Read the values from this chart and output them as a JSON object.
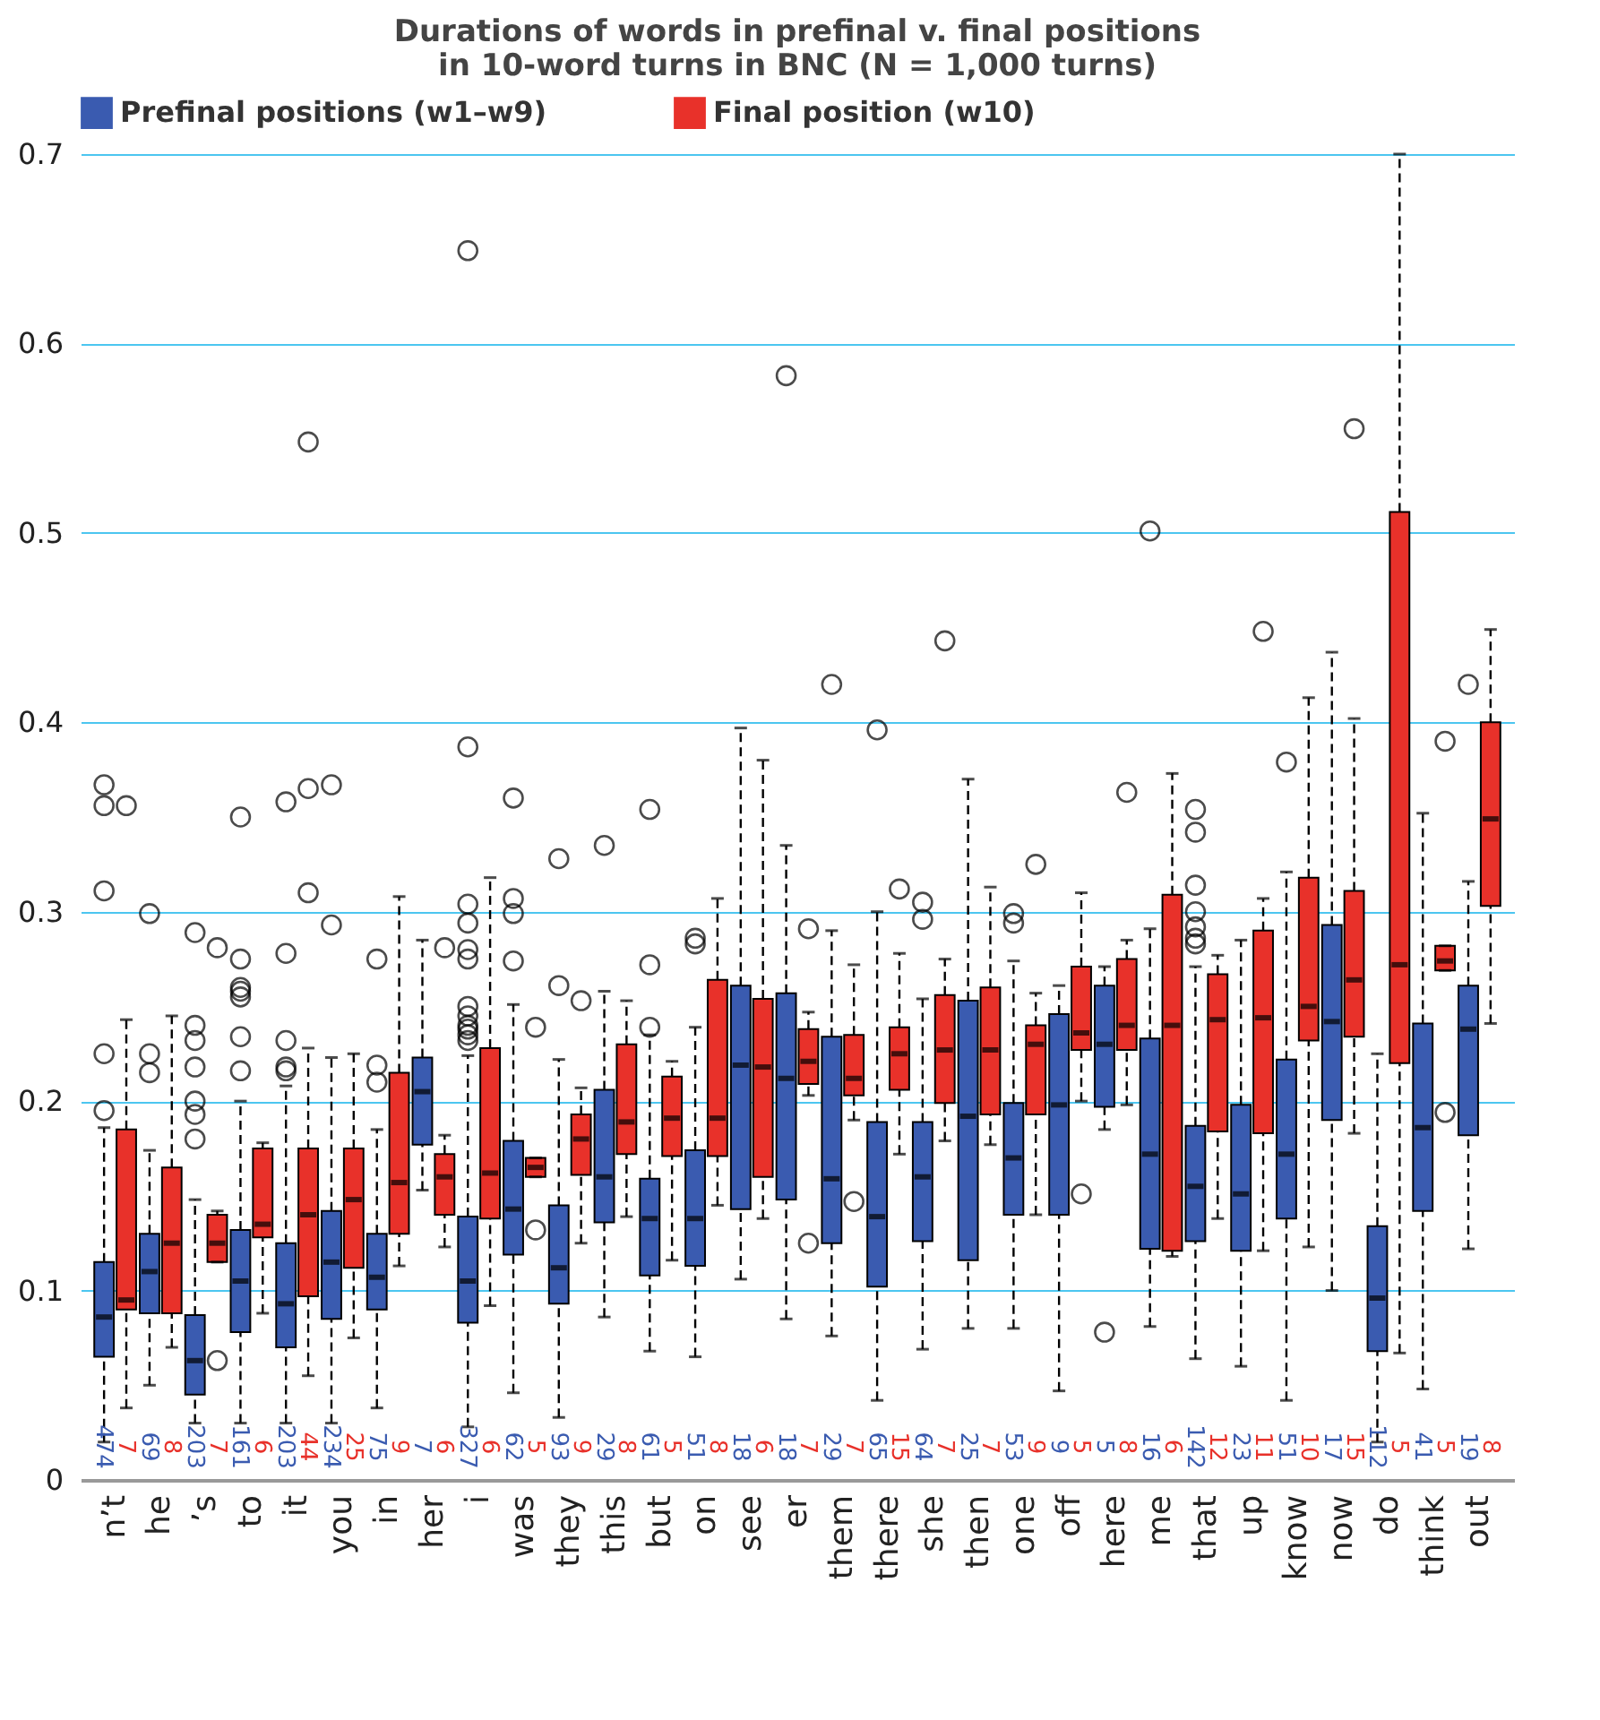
{
  "chart_data": {
    "type": "box",
    "title": "Durations of words in prefinal v. final positions\nin 10-word turns in BNC (N = 1,000 turns)",
    "categories": [
      "n’t",
      "he",
      "’s",
      "to",
      "it",
      "you",
      "in",
      "her",
      "i",
      "was",
      "they",
      "this",
      "but",
      "on",
      "see",
      "er",
      "them",
      "there",
      "she",
      "then",
      "one",
      "off",
      "here",
      "me",
      "that",
      "up",
      "know",
      "now",
      "do",
      "think",
      "out"
    ],
    "ylim": [
      0,
      0.7
    ],
    "yticks": [
      0,
      0.1,
      0.2,
      0.3,
      0.4,
      0.5,
      0.6,
      0.7
    ],
    "grid": "y",
    "legend": "top",
    "series": [
      {
        "name": "Prefinal positions (w1–w9)",
        "color": "#3a5bb0",
        "value_labels": [
          "474",
          "69",
          "203",
          "161",
          "203",
          "234",
          "75",
          "7",
          "327",
          "62",
          "93",
          "29",
          "61",
          "51",
          "18",
          "18",
          "29",
          "65",
          "64",
          "25",
          "53",
          "9",
          "5",
          "16",
          "142",
          "23",
          "51",
          "17",
          "112",
          "41",
          "19"
        ],
        "boxes": [
          {
            "low": 0.02,
            "q1": 0.065,
            "median": 0.086,
            "q3": 0.115,
            "high": 0.186,
            "outliers": [
              0.195,
              0.225,
              0.311,
              0.356,
              0.367
            ]
          },
          {
            "low": 0.05,
            "q1": 0.088,
            "median": 0.11,
            "q3": 0.13,
            "high": 0.174,
            "outliers": [
              0.215,
              0.225,
              0.299
            ]
          },
          {
            "low": 0.03,
            "q1": 0.045,
            "median": 0.063,
            "q3": 0.087,
            "high": 0.148,
            "outliers": [
              0.18,
              0.193,
              0.2,
              0.218,
              0.232,
              0.24,
              0.289
            ]
          },
          {
            "low": 0.03,
            "q1": 0.078,
            "median": 0.105,
            "q3": 0.132,
            "high": 0.2,
            "outliers": [
              0.216,
              0.234,
              0.255,
              0.258,
              0.26,
              0.275,
              0.35
            ]
          },
          {
            "low": 0.03,
            "q1": 0.07,
            "median": 0.093,
            "q3": 0.125,
            "high": 0.208,
            "outliers": [
              0.216,
              0.218,
              0.232,
              0.278,
              0.358
            ]
          },
          {
            "low": 0.03,
            "q1": 0.085,
            "median": 0.115,
            "q3": 0.142,
            "high": 0.223,
            "outliers": [
              0.293,
              0.367
            ]
          },
          {
            "low": 0.038,
            "q1": 0.09,
            "median": 0.107,
            "q3": 0.13,
            "high": 0.185,
            "outliers": [
              0.21,
              0.219,
              0.275
            ]
          },
          {
            "low": 0.153,
            "q1": 0.177,
            "median": 0.205,
            "q3": 0.223,
            "high": 0.285
          },
          {
            "low": 0.028,
            "q1": 0.083,
            "median": 0.105,
            "q3": 0.139,
            "high": 0.224,
            "outliers": [
              0.232,
              0.235,
              0.238,
              0.24,
              0.245,
              0.25,
              0.275,
              0.28,
              0.294,
              0.304,
              0.387,
              0.649
            ]
          },
          {
            "low": 0.046,
            "q1": 0.119,
            "median": 0.143,
            "q3": 0.179,
            "high": 0.251,
            "outliers": [
              0.274,
              0.299,
              0.307,
              0.36
            ]
          },
          {
            "low": 0.033,
            "q1": 0.093,
            "median": 0.112,
            "q3": 0.145,
            "high": 0.222,
            "outliers": [
              0.261,
              0.328
            ]
          },
          {
            "low": 0.086,
            "q1": 0.136,
            "median": 0.16,
            "q3": 0.206,
            "high": 0.258,
            "outliers": [
              0.335
            ]
          },
          {
            "low": 0.068,
            "q1": 0.108,
            "median": 0.138,
            "q3": 0.159,
            "high": 0.235,
            "outliers": [
              0.239,
              0.272,
              0.354
            ]
          },
          {
            "low": 0.065,
            "q1": 0.113,
            "median": 0.138,
            "q3": 0.174,
            "high": 0.239,
            "outliers": [
              0.283,
              0.286
            ]
          },
          {
            "low": 0.106,
            "q1": 0.143,
            "median": 0.219,
            "q3": 0.261,
            "high": 0.397
          },
          {
            "low": 0.085,
            "q1": 0.148,
            "median": 0.212,
            "q3": 0.257,
            "high": 0.335,
            "outliers": [
              0.583
            ]
          },
          {
            "low": 0.076,
            "q1": 0.125,
            "median": 0.159,
            "q3": 0.234,
            "high": 0.29,
            "outliers": [
              0.42
            ]
          },
          {
            "low": 0.042,
            "q1": 0.102,
            "median": 0.139,
            "q3": 0.189,
            "high": 0.3,
            "outliers": [
              0.396
            ]
          },
          {
            "low": 0.069,
            "q1": 0.126,
            "median": 0.16,
            "q3": 0.189,
            "high": 0.254,
            "outliers": [
              0.296,
              0.305
            ]
          },
          {
            "low": 0.08,
            "q1": 0.116,
            "median": 0.192,
            "q3": 0.253,
            "high": 0.37
          },
          {
            "low": 0.08,
            "q1": 0.14,
            "median": 0.17,
            "q3": 0.199,
            "high": 0.274,
            "outliers": [
              0.294,
              0.299
            ]
          },
          {
            "low": 0.047,
            "q1": 0.14,
            "median": 0.198,
            "q3": 0.246,
            "high": 0.261
          },
          {
            "low": 0.185,
            "q1": 0.197,
            "median": 0.23,
            "q3": 0.261,
            "high": 0.271,
            "outliers": [
              0.078
            ]
          },
          {
            "low": 0.081,
            "q1": 0.122,
            "median": 0.172,
            "q3": 0.233,
            "high": 0.291,
            "outliers": [
              0.501
            ]
          },
          {
            "low": 0.064,
            "q1": 0.126,
            "median": 0.155,
            "q3": 0.187,
            "high": 0.271,
            "outliers": [
              0.283,
              0.286,
              0.292,
              0.3,
              0.314,
              0.342,
              0.354
            ]
          },
          {
            "low": 0.06,
            "q1": 0.121,
            "median": 0.151,
            "q3": 0.198,
            "high": 0.285
          },
          {
            "low": 0.042,
            "q1": 0.138,
            "median": 0.172,
            "q3": 0.222,
            "high": 0.321,
            "outliers": [
              0.379
            ]
          },
          {
            "low": 0.1,
            "q1": 0.19,
            "median": 0.242,
            "q3": 0.293,
            "high": 0.437
          },
          {
            "low": 0.02,
            "q1": 0.068,
            "median": 0.096,
            "q3": 0.134,
            "high": 0.225
          },
          {
            "low": 0.048,
            "q1": 0.142,
            "median": 0.186,
            "q3": 0.241,
            "high": 0.352
          },
          {
            "low": 0.122,
            "q1": 0.182,
            "median": 0.238,
            "q3": 0.261,
            "high": 0.316,
            "outliers": [
              0.42
            ]
          }
        ]
      },
      {
        "name": "Final position (w10)",
        "color": "#e8312a",
        "value_labels": [
          "7",
          "8",
          "7",
          "6",
          "44",
          "25",
          "9",
          "6",
          "6",
          "5",
          "9",
          "8",
          "5",
          "8",
          "6",
          "7",
          "7",
          "15",
          "7",
          "7",
          "9",
          "5",
          "8",
          "6",
          "12",
          "11",
          "10",
          "15",
          "5",
          "5",
          "8"
        ],
        "boxes": [
          {
            "low": 0.038,
            "q1": 0.09,
            "median": 0.095,
            "q3": 0.185,
            "high": 0.243,
            "outliers": [
              0.356
            ]
          },
          {
            "low": 0.07,
            "q1": 0.088,
            "median": 0.125,
            "q3": 0.165,
            "high": 0.245
          },
          {
            "low": 0.115,
            "q1": 0.115,
            "median": 0.125,
            "q3": 0.14,
            "high": 0.142,
            "outliers": [
              0.063,
              0.281
            ]
          },
          {
            "low": 0.088,
            "q1": 0.128,
            "median": 0.135,
            "q3": 0.175,
            "high": 0.178
          },
          {
            "low": 0.055,
            "q1": 0.097,
            "median": 0.14,
            "q3": 0.175,
            "high": 0.228,
            "outliers": [
              0.31,
              0.365,
              0.548
            ]
          },
          {
            "low": 0.075,
            "q1": 0.112,
            "median": 0.148,
            "q3": 0.175,
            "high": 0.225
          },
          {
            "low": 0.113,
            "q1": 0.13,
            "median": 0.157,
            "q3": 0.215,
            "high": 0.308
          },
          {
            "low": 0.123,
            "q1": 0.14,
            "median": 0.16,
            "q3": 0.172,
            "high": 0.182,
            "outliers": [
              0.281
            ]
          },
          {
            "low": 0.092,
            "q1": 0.138,
            "median": 0.162,
            "q3": 0.228,
            "high": 0.318
          },
          {
            "low": 0.16,
            "q1": 0.16,
            "median": 0.165,
            "q3": 0.17,
            "high": 0.17,
            "outliers": [
              0.132,
              0.239
            ]
          },
          {
            "low": 0.125,
            "q1": 0.161,
            "median": 0.18,
            "q3": 0.193,
            "high": 0.207,
            "outliers": [
              0.253
            ]
          },
          {
            "low": 0.139,
            "q1": 0.172,
            "median": 0.189,
            "q3": 0.23,
            "high": 0.253
          },
          {
            "low": 0.116,
            "q1": 0.171,
            "median": 0.191,
            "q3": 0.213,
            "high": 0.221
          },
          {
            "low": 0.145,
            "q1": 0.171,
            "median": 0.191,
            "q3": 0.264,
            "high": 0.307
          },
          {
            "low": 0.138,
            "q1": 0.16,
            "median": 0.218,
            "q3": 0.254,
            "high": 0.38
          },
          {
            "low": 0.203,
            "q1": 0.209,
            "median": 0.221,
            "q3": 0.238,
            "high": 0.247,
            "outliers": [
              0.125,
              0.291
            ]
          },
          {
            "low": 0.19,
            "q1": 0.203,
            "median": 0.212,
            "q3": 0.235,
            "high": 0.272,
            "outliers": [
              0.147
            ]
          },
          {
            "low": 0.172,
            "q1": 0.206,
            "median": 0.225,
            "q3": 0.239,
            "high": 0.278,
            "outliers": [
              0.312
            ]
          },
          {
            "low": 0.179,
            "q1": 0.199,
            "median": 0.227,
            "q3": 0.256,
            "high": 0.275,
            "outliers": [
              0.443
            ]
          },
          {
            "low": 0.177,
            "q1": 0.193,
            "median": 0.227,
            "q3": 0.26,
            "high": 0.313
          },
          {
            "low": 0.14,
            "q1": 0.193,
            "median": 0.23,
            "q3": 0.24,
            "high": 0.257,
            "outliers": [
              0.325
            ]
          },
          {
            "low": 0.2,
            "q1": 0.227,
            "median": 0.236,
            "q3": 0.271,
            "high": 0.31,
            "outliers": [
              0.151
            ]
          },
          {
            "low": 0.198,
            "q1": 0.227,
            "median": 0.24,
            "q3": 0.275,
            "high": 0.285,
            "outliers": [
              0.363
            ]
          },
          {
            "low": 0.118,
            "q1": 0.121,
            "median": 0.24,
            "q3": 0.309,
            "high": 0.373
          },
          {
            "low": 0.138,
            "q1": 0.184,
            "median": 0.243,
            "q3": 0.267,
            "high": 0.277
          },
          {
            "low": 0.121,
            "q1": 0.183,
            "median": 0.244,
            "q3": 0.29,
            "high": 0.307,
            "outliers": [
              0.448
            ]
          },
          {
            "low": 0.123,
            "q1": 0.232,
            "median": 0.25,
            "q3": 0.318,
            "high": 0.413
          },
          {
            "low": 0.183,
            "q1": 0.234,
            "median": 0.264,
            "q3": 0.311,
            "high": 0.402,
            "outliers": [
              0.555
            ]
          },
          {
            "low": 0.067,
            "q1": 0.22,
            "median": 0.272,
            "q3": 0.511,
            "high": 0.7
          },
          {
            "low": 0.269,
            "q1": 0.269,
            "median": 0.274,
            "q3": 0.282,
            "high": 0.282,
            "outliers": [
              0.194,
              0.39
            ]
          },
          {
            "low": 0.241,
            "q1": 0.303,
            "median": 0.349,
            "q3": 0.4,
            "high": 0.449
          }
        ]
      }
    ]
  }
}
